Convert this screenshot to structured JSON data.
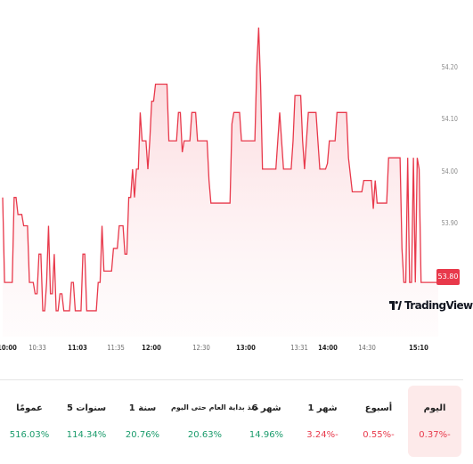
{
  "chart_data": {
    "type": "area",
    "x_labels": [
      "10:00",
      "10:33",
      "11:03",
      "11:35",
      "12:00",
      "12:30",
      "13:00",
      "13:31",
      "14:00",
      "14:30",
      "15:10"
    ],
    "y_ticks": [
      "53.80",
      "53.90",
      "54.00",
      "54.10",
      "54.20"
    ],
    "last_price": "53.80",
    "ylim": [
      53.72,
      54.275
    ],
    "line_color": "#e8394b",
    "values": [
      53.95,
      53.8,
      53.8,
      53.8,
      53.8,
      53.8,
      53.95,
      53.95,
      53.92,
      53.92,
      53.92,
      53.9,
      53.9,
      53.9,
      53.8,
      53.8,
      53.8,
      53.78,
      53.78,
      53.85,
      53.85,
      53.75,
      53.75,
      53.8,
      53.9,
      53.78,
      53.78,
      53.85,
      53.75,
      53.75,
      53.78,
      53.78,
      53.75,
      53.75,
      53.75,
      53.75,
      53.8,
      53.8,
      53.75,
      53.75,
      53.75,
      53.75,
      53.85,
      53.85,
      53.75,
      53.75,
      53.75,
      53.75,
      53.75,
      53.75,
      53.8,
      53.8,
      53.9,
      53.82,
      53.82,
      53.82,
      53.82,
      53.82,
      53.86,
      53.86,
      53.86,
      53.9,
      53.9,
      53.9,
      53.85,
      53.85,
      53.95,
      53.95,
      54.0,
      53.95,
      54.0,
      54.0,
      54.1,
      54.05,
      54.05,
      54.05,
      54.0,
      54.05,
      54.12,
      54.12,
      54.15,
      54.15,
      54.15,
      54.15,
      54.15,
      54.15,
      54.15,
      54.05,
      54.05,
      54.05,
      54.05,
      54.05,
      54.1,
      54.1,
      54.03,
      54.05,
      54.05,
      54.05,
      54.05,
      54.1,
      54.1,
      54.1,
      54.05,
      54.05,
      54.05,
      54.05,
      54.05,
      54.05,
      53.98,
      53.94,
      53.94,
      53.94,
      53.94,
      53.94,
      53.94,
      53.94,
      53.94,
      53.94,
      53.94,
      53.94,
      54.08,
      54.1,
      54.1,
      54.1,
      54.1,
      54.05,
      54.05,
      54.05,
      54.05,
      54.05,
      54.05,
      54.05,
      54.05,
      54.18,
      54.25,
      54.15,
      54.0,
      54.0,
      54.0,
      54.0,
      54.0,
      54.0,
      54.0,
      54.0,
      54.05,
      54.1,
      54.05,
      54.0,
      54.0,
      54.0,
      54.0,
      54.0,
      54.05,
      54.13,
      54.13,
      54.13,
      54.13,
      54.05,
      54.0,
      54.05,
      54.1,
      54.1,
      54.1,
      54.1,
      54.1,
      54.05,
      54.0,
      54.0,
      54.0,
      54.0,
      54.01,
      54.05,
      54.05,
      54.05,
      54.05,
      54.1,
      54.1,
      54.1,
      54.1,
      54.1,
      54.1,
      54.02,
      53.99,
      53.96,
      53.96,
      53.96,
      53.96,
      53.96,
      53.96,
      53.98,
      53.98,
      53.98,
      53.98,
      53.98,
      53.93,
      53.98,
      53.94,
      53.94,
      53.94,
      53.94,
      53.94,
      53.94,
      54.02,
      54.02,
      54.02,
      54.02,
      54.02,
      54.02,
      54.02,
      53.86,
      53.8,
      53.8,
      54.02,
      53.8,
      53.8,
      54.02,
      53.8,
      54.02,
      54.0,
      53.8,
      53.8,
      53.8,
      53.8,
      53.8,
      53.8,
      53.8,
      53.8,
      53.8,
      53.8
    ]
  },
  "branding": {
    "logo_text": "TradingView"
  },
  "periods": [
    {
      "label": "عمومًا",
      "value": "516.03%",
      "sign": "pos",
      "active": false
    },
    {
      "label": "5 سنوات",
      "value": "114.34%",
      "sign": "pos",
      "active": false
    },
    {
      "label": "1 سنة",
      "value": "20.76%",
      "sign": "pos",
      "active": false
    },
    {
      "label": "منذ بداية العام حتى اليوم",
      "value": "20.63%",
      "sign": "pos",
      "active": false
    },
    {
      "label": "6 شهر",
      "value": "14.96%",
      "sign": "pos",
      "active": false
    },
    {
      "label": "1 شهر",
      "value": "3.24%-",
      "sign": "neg",
      "active": false
    },
    {
      "label": "أسبوع",
      "value": "0.55%-",
      "sign": "neg",
      "active": false
    },
    {
      "label": "اليوم",
      "value": "0.37%-",
      "sign": "neg",
      "active": true
    }
  ]
}
